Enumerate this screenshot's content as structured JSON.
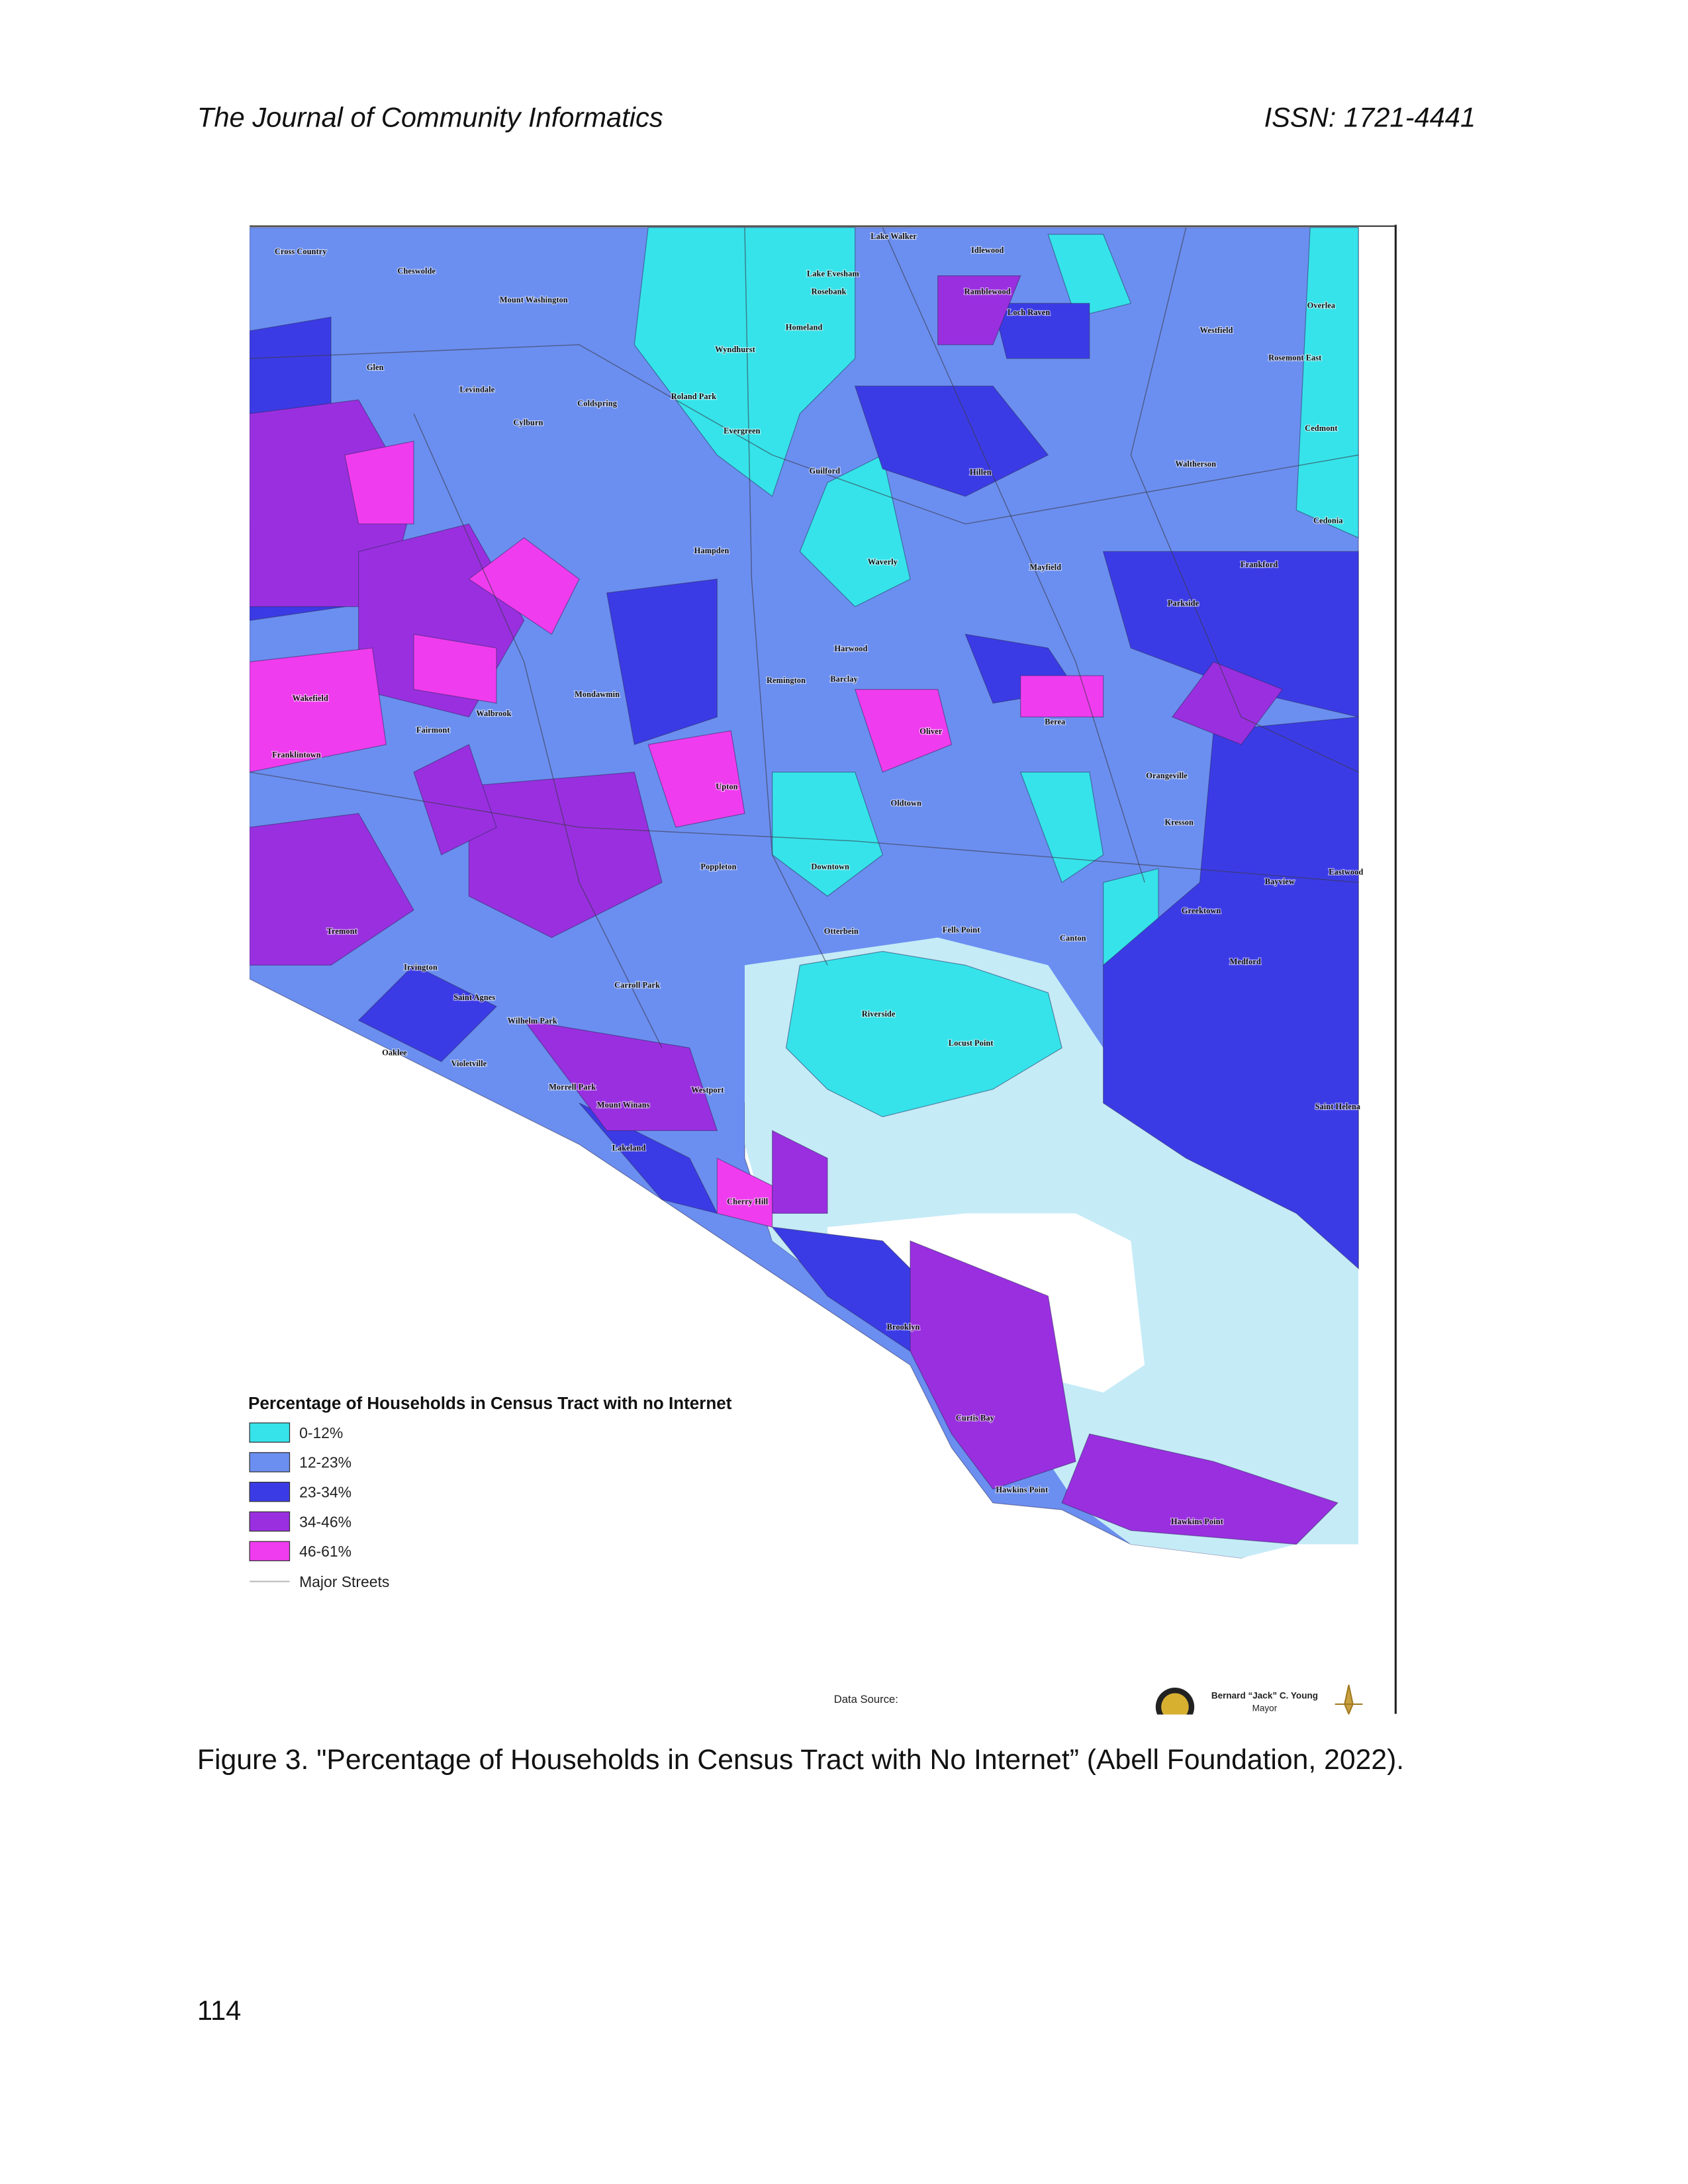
{
  "header": {
    "journal": "The Journal of Community Informatics",
    "issn": "ISSN: 1721-4441"
  },
  "figure": {
    "legend": {
      "title": "Percentage of Households in Census Tract with no Internet",
      "items": [
        {
          "label": "0-12%",
          "color": "#36e3ea"
        },
        {
          "label": "12-23%",
          "color": "#6b8ff0"
        },
        {
          "label": "23-34%",
          "color": "#3b3be6"
        },
        {
          "label": "34-46%",
          "color": "#9a2fe0"
        },
        {
          "label": "46-61%",
          "color": "#f03cef"
        }
      ],
      "streets": "Major Streets"
    },
    "source": "Data Source:",
    "mayor": "Bernard “Jack” C. Young",
    "mayor_title": "Mayor",
    "labels": [
      "Cross Country",
      "Cheswolde",
      "Mount Washington",
      "Lake Walker",
      "Idlewood",
      "Lake Evesham",
      "Rosebank",
      "Homeland",
      "Wyndhurst",
      "Roland Park",
      "Ramblewood",
      "Loch Raven",
      "Westfield",
      "Overlea",
      "Rosemont East",
      "Levindale",
      "Glen",
      "Cylburn",
      "Coldspring",
      "Evergreen",
      "Guilford",
      "Hillen",
      "Waltherson",
      "Cedmont",
      "Cedonia",
      "Frankford",
      "Parkside",
      "Mayfield",
      "Hampden",
      "Waverly",
      "Harwood",
      "Remington",
      "Barclay",
      "Wakefield",
      "Franklintown",
      "Mondawmin",
      "Walbrook",
      "Fairmont",
      "Upton",
      "Oldtown",
      "Orangeville",
      "Kresson",
      "Bayview",
      "Eastwood",
      "Downtown",
      "Poppleton",
      "Canton",
      "Greektown",
      "Fells Point",
      "Otterbein",
      "Tremont",
      "Irvington",
      "Saint Agnes",
      "Wilhelm Park",
      "Carroll Park",
      "Oaklee",
      "Violetville",
      "Morrell Park",
      "Westport",
      "Mount Winans",
      "Lakeland",
      "Cherry Hill",
      "Brooklyn",
      "Curtis Bay",
      "Hawkins Point",
      "Hawkins Point",
      "Locust Point",
      "Riverside",
      "Saint Helena",
      "Medford",
      "Berea",
      "Oliver"
    ]
  },
  "caption": "Figure 3. \"Percentage of Households in Census Tract with No Internet” (Abell Foundation, 2022).",
  "page_number": "114"
}
